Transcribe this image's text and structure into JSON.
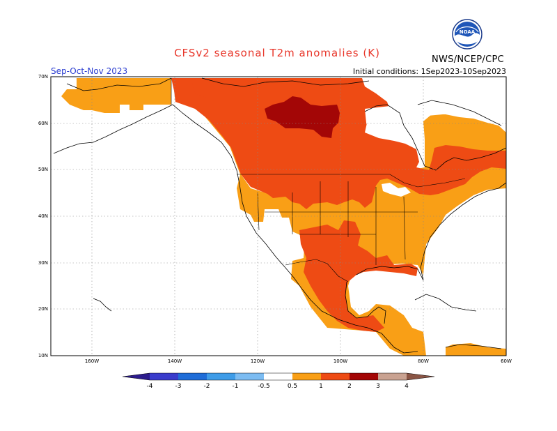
{
  "title": "CFSv2 seasonal T2m anomalies (K)",
  "period": "Sep-Oct-Nov 2023",
  "initial_conditions": "Initial conditions: 1Sep2023-10Sep2023",
  "agency": "NWS/NCEP/CPC",
  "logo_text": "NOAA",
  "axes": {
    "lat_labels": [
      "70N",
      "60N",
      "50N",
      "40N",
      "30N",
      "20N",
      "10N"
    ],
    "lon_labels": [
      "160W",
      "140W",
      "120W",
      "100W",
      "80W",
      "60W"
    ]
  },
  "colorbar": {
    "labels": [
      "-4",
      "-3",
      "-2",
      "-1",
      "-0.5",
      "0.5",
      "1",
      "2",
      "3",
      "4"
    ],
    "colors": [
      "#2c1c8c",
      "#3a3ccc",
      "#1f6dd8",
      "#3e9ce8",
      "#7cbcf2",
      "#ffffff",
      "#f99f16",
      "#ee4b14",
      "#a30606",
      "#c9a291",
      "#8a5545"
    ]
  },
  "legend_colors": {
    "anom_05_1": "#f99f16",
    "anom_1_2": "#ee4b14",
    "anom_2_3": "#a30606"
  }
}
